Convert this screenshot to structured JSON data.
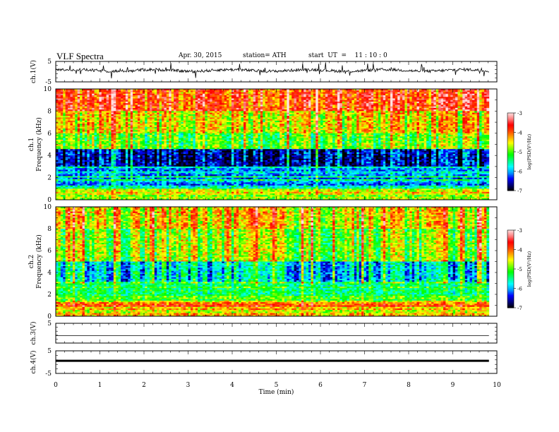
{
  "header": {
    "title": "VLF  Spectra",
    "date": "Apr. 30, 2015",
    "station": "station= ATH",
    "start": "start  UT  =    11 : 10 : 0"
  },
  "chart_data": [
    {
      "type": "line",
      "panel": "ch1-waveform",
      "ylabel": "ch.1(V)",
      "ylim": [
        -5,
        5
      ],
      "yticks": [
        "5",
        "-5"
      ],
      "note_level": 0
    },
    {
      "type": "heatmap",
      "panel": "ch1-spectrogram",
      "ylabel": "Frequency (kHz)",
      "channel_label": "ch.1",
      "ylim": [
        0,
        10
      ],
      "yticks": [
        "0",
        "2",
        "4",
        "6",
        "8",
        "10"
      ],
      "colorbar": {
        "label": "log(PSD(V²/Hz)",
        "range": [
          -7,
          -3
        ],
        "ticks": [
          "-3",
          "-4",
          "-5",
          "-6",
          "-7"
        ]
      }
    },
    {
      "type": "heatmap",
      "panel": "ch2-spectrogram",
      "ylabel": "Frequency (kHz)",
      "channel_label": "ch.2",
      "ylim": [
        0,
        10
      ],
      "yticks": [
        "0",
        "2",
        "4",
        "6",
        "8",
        "10"
      ],
      "colorbar": {
        "label": "log(PSD(V²/Hz)",
        "range": [
          -7,
          -3
        ],
        "ticks": [
          "-3",
          "-4",
          "-5",
          "-6",
          "-7"
        ]
      }
    },
    {
      "type": "line",
      "panel": "ch3-waveform",
      "ylabel": "ch.3(V)",
      "ylim": [
        -5,
        5
      ],
      "yticks": [
        "5"
      ]
    },
    {
      "type": "line",
      "panel": "ch4-waveform",
      "ylabel": "ch.4(V)",
      "ylim": [
        -5,
        5
      ],
      "yticks": [
        "5",
        "-5"
      ]
    }
  ],
  "xaxis": {
    "label": "Time  (min)",
    "xlim": [
      0,
      10
    ],
    "ticks": [
      "0",
      "1",
      "2",
      "3",
      "4",
      "5",
      "6",
      "7",
      "8",
      "9",
      "10"
    ],
    "data_end": 9.82
  },
  "colors": {
    "scale": [
      "#000000",
      "#000080",
      "#0000ff",
      "#00a0ff",
      "#00ffff",
      "#00ff80",
      "#00ff00",
      "#80ff00",
      "#ffff00",
      "#ffa000",
      "#ff4000",
      "#ff0000",
      "#ff8080",
      "#ffe0e0"
    ]
  }
}
